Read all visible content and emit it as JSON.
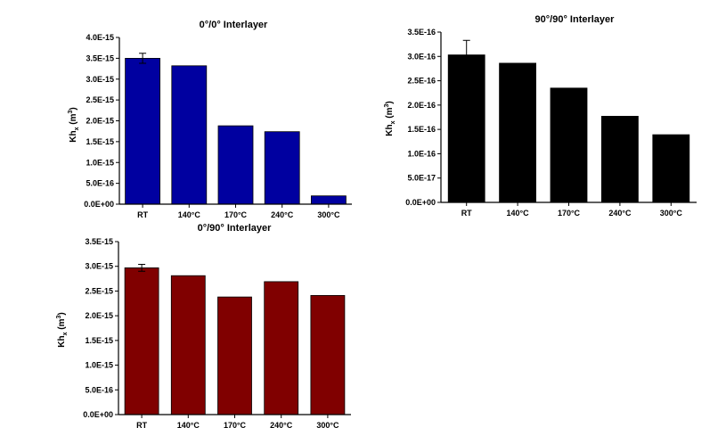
{
  "chart_data": [
    {
      "type": "bar",
      "title": "0°/0° Interlayer",
      "ylabel": "Khₓ (m³)",
      "ylabel_main": "Kh",
      "ylabel_sub": "x",
      "ylabel_unit_open": " (m",
      "ylabel_unit_sup": "3",
      "ylabel_unit_close": ")",
      "categories": [
        "RT",
        "140°C",
        "170°C",
        "240°C",
        "300°C"
      ],
      "values": [
        3.5e-15,
        3.32e-15,
        1.88e-15,
        1.74e-15,
        2e-16
      ],
      "error": [
        1.2e-16,
        null,
        null,
        null,
        null
      ],
      "ylim": [
        0,
        4e-15
      ],
      "yticks": [
        {
          "value": 0,
          "label": "0.0E+00"
        },
        {
          "value": 5e-16,
          "label": "5.0E-16"
        },
        {
          "value": 1e-15,
          "label": "1.0E-15"
        },
        {
          "value": 1.5e-15,
          "label": "1.5E-15"
        },
        {
          "value": 2e-15,
          "label": "2.0E-15"
        },
        {
          "value": 2.5e-15,
          "label": "2.5E-15"
        },
        {
          "value": 3e-15,
          "label": "3.0E-15"
        },
        {
          "value": 3.5e-15,
          "label": "3.5E-15"
        },
        {
          "value": 4e-15,
          "label": "4.0E-15"
        }
      ],
      "bar_color": "#0000a0"
    },
    {
      "type": "bar",
      "title": "90°/90° Interlayer",
      "ylabel": "Khₓ (m³)",
      "ylabel_main": "Kh",
      "ylabel_sub": "x",
      "ylabel_unit_open": " (m",
      "ylabel_unit_sup": "3",
      "ylabel_unit_close": ")",
      "categories": [
        "RT",
        "140°C",
        "170°C",
        "240°C",
        "300°C"
      ],
      "values": [
        3.03e-16,
        2.86e-16,
        2.35e-16,
        1.77e-16,
        1.39e-16
      ],
      "error": [
        3e-17,
        null,
        null,
        null,
        null
      ],
      "ylim": [
        0,
        3.5e-16
      ],
      "yticks": [
        {
          "value": 0,
          "label": "0.0E+00"
        },
        {
          "value": 5e-17,
          "label": "5.0E-17"
        },
        {
          "value": 1e-16,
          "label": "1.0E-16"
        },
        {
          "value": 1.5e-16,
          "label": "1.5E-16"
        },
        {
          "value": 2e-16,
          "label": "2.0E-16"
        },
        {
          "value": 2.5e-16,
          "label": "2.5E-16"
        },
        {
          "value": 3e-16,
          "label": "3.0E-16"
        },
        {
          "value": 3.5e-16,
          "label": "3.5E-16"
        }
      ],
      "bar_color": "#000000"
    },
    {
      "type": "bar",
      "title": "0°/90° Interlayer",
      "ylabel": "Khₓ (m³)",
      "ylabel_main": "Kh",
      "ylabel_sub": "x",
      "ylabel_unit_open": " (m",
      "ylabel_unit_sup": "3",
      "ylabel_unit_close": ")",
      "categories": [
        "RT",
        "140°C",
        "170°C",
        "240°C",
        "300°C"
      ],
      "values": [
        2.97e-15,
        2.81e-15,
        2.38e-15,
        2.69e-15,
        2.41e-15
      ],
      "error": [
        7e-17,
        null,
        null,
        null,
        null
      ],
      "ylim": [
        0,
        3.5e-15
      ],
      "yticks": [
        {
          "value": 0,
          "label": "0.0E+00"
        },
        {
          "value": 5e-16,
          "label": "5.0E-16"
        },
        {
          "value": 1e-15,
          "label": "1.0E-15"
        },
        {
          "value": 1.5e-15,
          "label": "1.5E-15"
        },
        {
          "value": 2e-15,
          "label": "2.0E-15"
        },
        {
          "value": 2.5e-15,
          "label": "2.5E-15"
        },
        {
          "value": 3e-15,
          "label": "3.0E-15"
        },
        {
          "value": 3.5e-15,
          "label": "3.5E-15"
        }
      ],
      "bar_color": "#800000"
    }
  ]
}
